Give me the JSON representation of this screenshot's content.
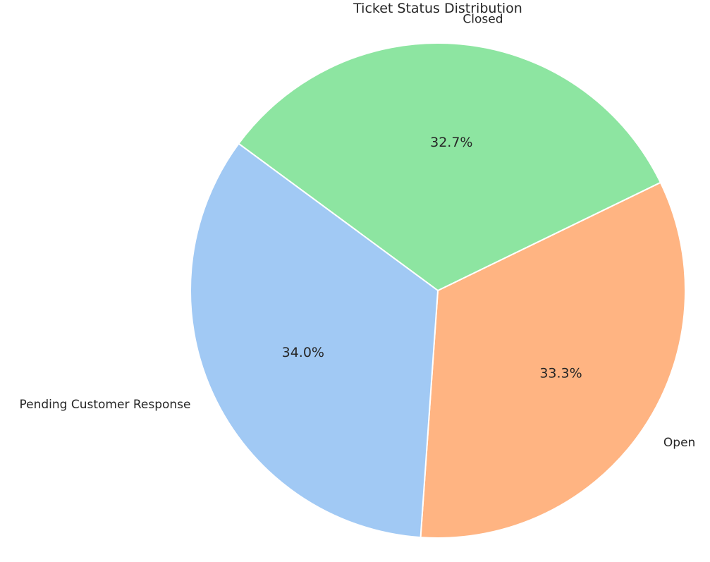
{
  "chart_data": {
    "type": "pie",
    "title": "Ticket Status Distribution",
    "categories": [
      "Open",
      "Closed",
      "Pending Customer Response"
    ],
    "values": [
      33.3,
      32.7,
      34.0
    ],
    "value_labels": [
      "33.3%",
      "32.7%",
      "34.0%"
    ],
    "colors": [
      "#ffb482",
      "#8de5a1",
      "#a1c9f4"
    ],
    "start_angle_deg": 266,
    "direction": "counterclockwise",
    "legend": "none"
  }
}
